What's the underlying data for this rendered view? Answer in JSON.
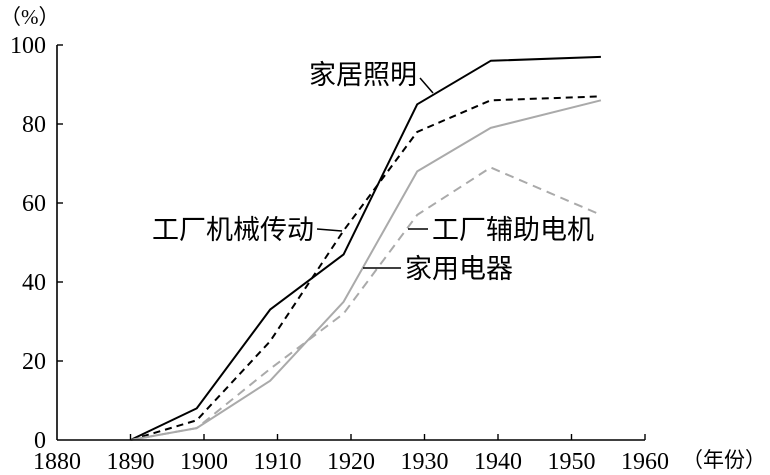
{
  "chart_data": {
    "type": "line",
    "xlabel": "（年份）",
    "ylabel": "（%）",
    "xlim": [
      1880,
      1960
    ],
    "ylim": [
      0,
      100
    ],
    "x_ticks": [
      1880,
      1890,
      1900,
      1910,
      1920,
      1930,
      1940,
      1950,
      1960
    ],
    "y_ticks": [
      0,
      20,
      40,
      60,
      80,
      100
    ],
    "grid": false,
    "x": [
      1890,
      1899,
      1909,
      1919,
      1929,
      1939,
      1954
    ],
    "series": [
      {
        "name": "家居照明",
        "color": "#000000",
        "dashed": false,
        "values": [
          0,
          8,
          33,
          47,
          85,
          96,
          97
        ]
      },
      {
        "name": "工厂机械传动",
        "color": "#000000",
        "dashed": true,
        "values": [
          0,
          5,
          25,
          53,
          78,
          86,
          87
        ]
      },
      {
        "name": "工厂辅助电机",
        "color": "#aaaaaa",
        "dashed": true,
        "values": [
          0,
          3,
          18,
          32,
          57,
          69,
          57
        ]
      },
      {
        "name": "家用电器",
        "color": "#aaaaaa",
        "dashed": false,
        "values": [
          0,
          3,
          15,
          35,
          68,
          79,
          86
        ]
      }
    ]
  }
}
